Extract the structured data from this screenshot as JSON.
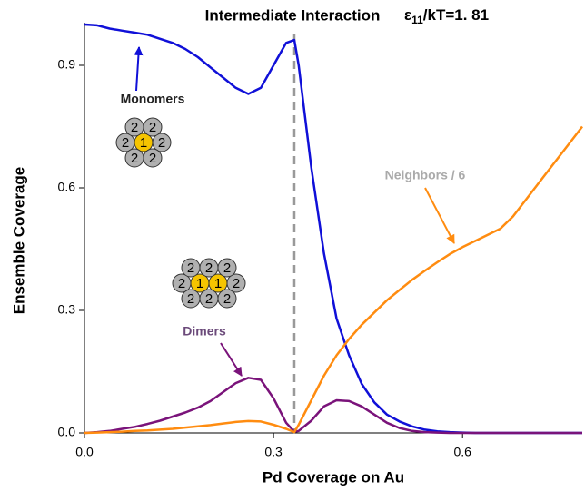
{
  "chart_data": {
    "type": "line",
    "title": "Intermediate Interaction",
    "energy_label": {
      "symbol": "ε",
      "subscript": "11",
      "rest": "/kT=1. 81"
    },
    "x_label": "Pd Coverage on Au",
    "y_label": "Ensemble Coverage",
    "xlim": [
      0,
      0.79
    ],
    "ylim": [
      0,
      1.0
    ],
    "xticks": [
      {
        "value": 0,
        "label": "0.0"
      },
      0.3,
      0.6
    ],
    "yticks": [
      {
        "value": 0,
        "label": "0.0"
      },
      0.3,
      0.6,
      0.9
    ],
    "vline": 0.333,
    "x": [
      0,
      0.02,
      0.04,
      0.06,
      0.08,
      0.1,
      0.12,
      0.14,
      0.16,
      0.18,
      0.2,
      0.22,
      0.24,
      0.26,
      0.28,
      0.3,
      0.32,
      0.333,
      0.34,
      0.36,
      0.38,
      0.4,
      0.42,
      0.44,
      0.46,
      0.48,
      0.5,
      0.52,
      0.54,
      0.56,
      0.58,
      0.6,
      0.62,
      0.64,
      0.66,
      0.68,
      0.7,
      0.72,
      0.74,
      0.76,
      0.78,
      0.79
    ],
    "series": [
      {
        "name": "Monomers",
        "color": "#1010d8",
        "values": [
          1.0,
          0.998,
          0.99,
          0.985,
          0.98,
          0.975,
          0.965,
          0.955,
          0.94,
          0.92,
          0.895,
          0.87,
          0.845,
          0.83,
          0.845,
          0.9,
          0.955,
          0.962,
          0.9,
          0.65,
          0.44,
          0.28,
          0.19,
          0.12,
          0.075,
          0.045,
          0.028,
          0.016,
          0.008,
          0.004,
          0.002,
          0.001,
          0,
          0,
          0,
          0,
          0,
          0,
          0,
          0,
          0,
          0
        ]
      },
      {
        "name": "Dimers",
        "color": "#7a137a",
        "values": [
          0,
          0.002,
          0.005,
          0.01,
          0.015,
          0.022,
          0.03,
          0.04,
          0.05,
          0.062,
          0.078,
          0.1,
          0.122,
          0.135,
          0.13,
          0.085,
          0.025,
          0.003,
          0.005,
          0.03,
          0.065,
          0.08,
          0.078,
          0.065,
          0.045,
          0.025,
          0.012,
          0.005,
          0.002,
          0.001,
          0,
          0,
          0,
          0,
          0,
          0,
          0,
          0,
          0,
          0,
          0,
          0
        ]
      },
      {
        "name": "Neighbors / 6",
        "color": "#ff8c10",
        "values": [
          0,
          0.001,
          0.002,
          0.003,
          0.005,
          0.006,
          0.008,
          0.01,
          0.013,
          0.016,
          0.019,
          0.023,
          0.027,
          0.029,
          0.028,
          0.02,
          0.01,
          0.002,
          0.02,
          0.08,
          0.14,
          0.19,
          0.23,
          0.265,
          0.295,
          0.325,
          0.35,
          0.375,
          0.397,
          0.418,
          0.438,
          0.455,
          0.47,
          0.485,
          0.5,
          0.53,
          0.57,
          0.61,
          0.65,
          0.69,
          0.73,
          0.75
        ]
      }
    ],
    "monomer_icon": [
      "1",
      "2",
      "2",
      "2",
      "2",
      "2",
      "2"
    ],
    "dimer_icon": [
      "1",
      "1",
      "2",
      "2",
      "2",
      "2",
      "2",
      "2",
      "2",
      "2"
    ]
  }
}
